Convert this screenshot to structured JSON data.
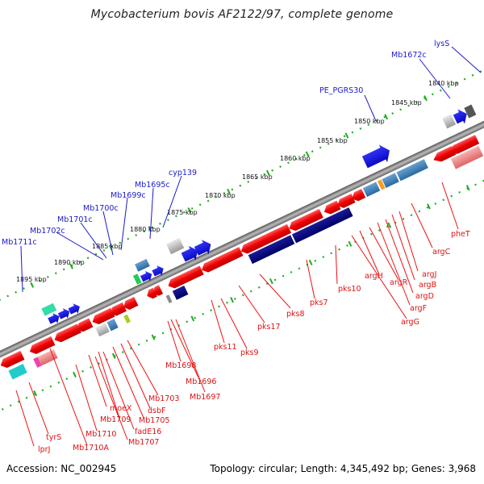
{
  "title": "Mycobacterium bovis AF2122/97, complete genome",
  "footer": {
    "accession": "Accession: NC_002945",
    "summary": "Topology: circular; Length: 4,345,492 bp; Genes: 3,968"
  },
  "colors": {
    "backbone": "#808080",
    "forward_gene": "#0000ee",
    "reverse_gene": "#ee0000",
    "tick": "#22aa22",
    "forward_label": "#1a1acc",
    "reverse_label": "#dd1111"
  },
  "kbp_labels": [
    "1840 kbp",
    "1845 kbp",
    "1850 kbp",
    "1855 kbp",
    "1860 kbp",
    "1865 kbp",
    "1870 kbp",
    "1875 kbp",
    "1880 kbp",
    "1885 kbp",
    "1890 kbp",
    "1895 kbp"
  ],
  "forward_labels": [
    "lysS",
    "Mb1672c",
    "PE_PGRS30",
    "cyp139",
    "Mb1695c",
    "Mb1699c",
    "Mb1700c",
    "Mb1701c",
    "Mb1702c",
    "Mb1711c"
  ],
  "reverse_labels": [
    "pheT",
    "argC",
    "argJ",
    "argB",
    "argD",
    "argF",
    "argR",
    "argH",
    "argG",
    "pks10",
    "pks7",
    "pks8",
    "pks17",
    "pks11",
    "pks9",
    "Mb1698",
    "Mb1696",
    "Mb1697",
    "Mb1703",
    "dsbF",
    "Mb1705",
    "fadE16",
    "Mb1707",
    "moeX",
    "Mb1709",
    "Mb1710",
    "Mb1710A",
    "tyrS",
    "lprJ"
  ]
}
